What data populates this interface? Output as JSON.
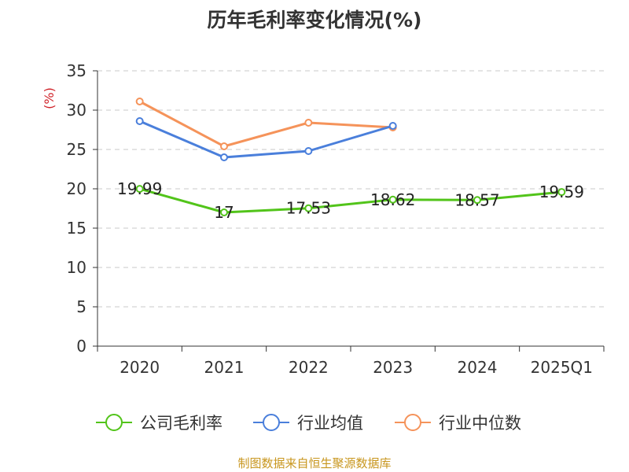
{
  "title": "历年毛利率变化情况(%)",
  "footer": "制图数据来自恒生聚源数据库",
  "chart_data": {
    "type": "line",
    "title": "历年毛利率变化情况(%)",
    "ylabel": "(%)",
    "xlabel": "",
    "ylim": [
      0,
      35
    ],
    "yticks": [
      0,
      5,
      10,
      15,
      20,
      25,
      30,
      35
    ],
    "grid": "horizontal dashed",
    "legend_position": "bottom",
    "categories": [
      "2020",
      "2021",
      "2022",
      "2023",
      "2024",
      "2025Q1"
    ],
    "series": [
      {
        "name": "公司毛利率",
        "color": "#52c41a",
        "values": [
          19.99,
          17,
          17.53,
          18.62,
          18.57,
          19.59
        ],
        "labels": [
          "19.99",
          "17",
          "17.53",
          "18.62",
          "18.57",
          "19.59"
        ]
      },
      {
        "name": "行业均值",
        "color": "#4a7fdb",
        "values": [
          28.6,
          24.0,
          24.8,
          28.0,
          null,
          null
        ]
      },
      {
        "name": "行业中位数",
        "color": "#f5935a",
        "values": [
          31.1,
          25.4,
          28.4,
          27.8,
          null,
          null
        ]
      }
    ]
  }
}
